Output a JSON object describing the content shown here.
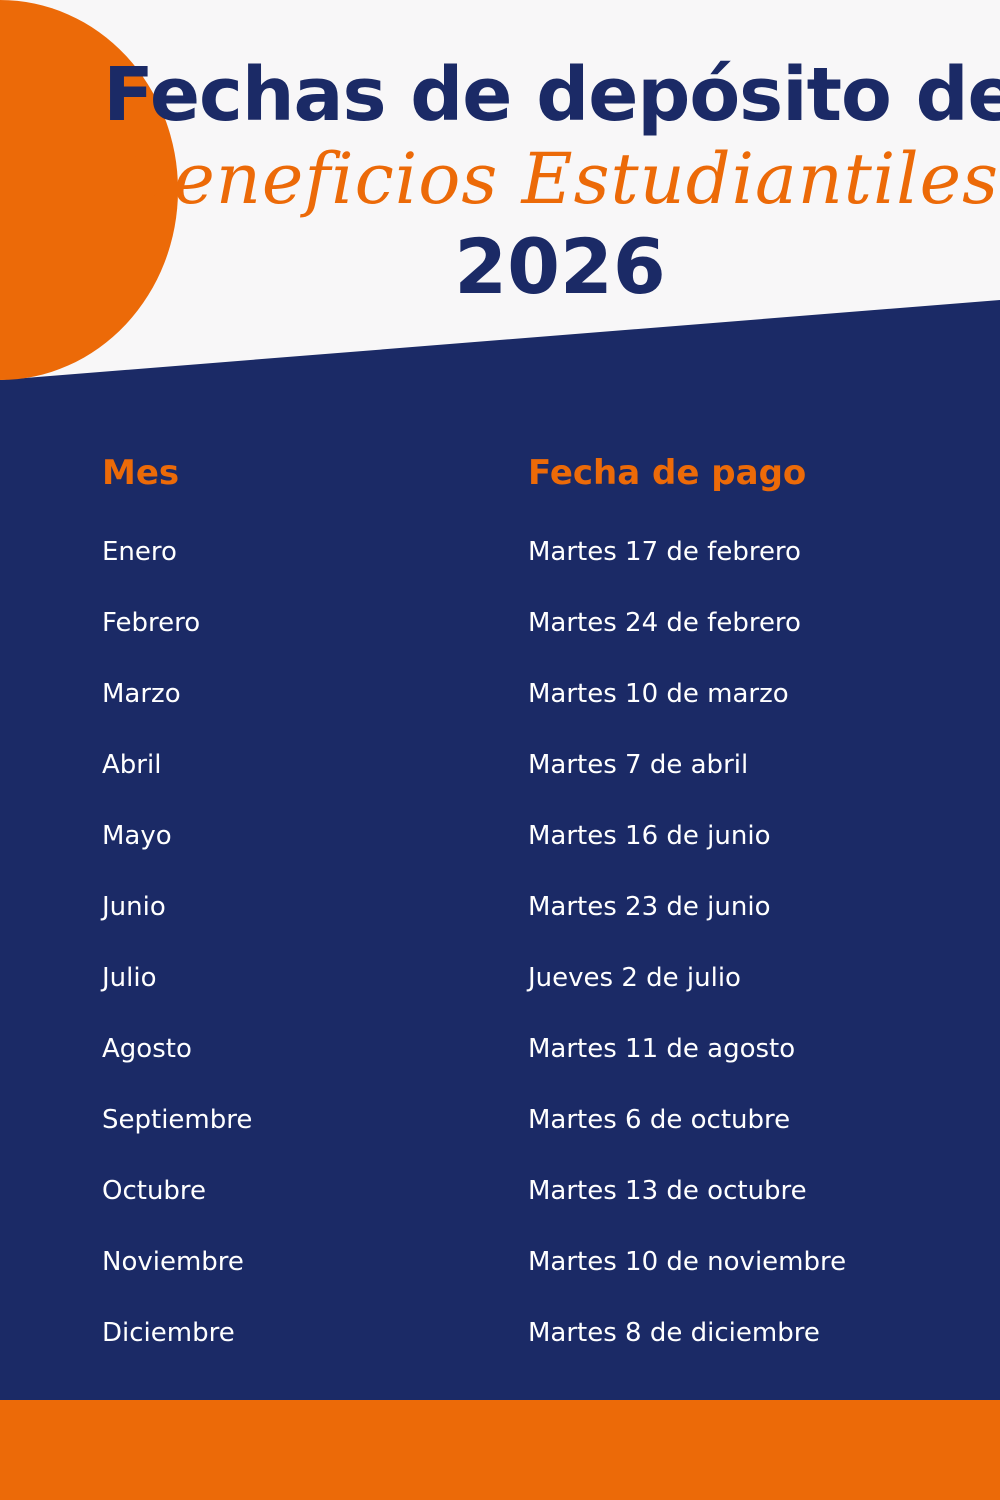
{
  "colors": {
    "navy": "#1b2a66",
    "orange": "#ec6a08",
    "background": "#f8f7f8"
  },
  "header": {
    "line1": "Fechas de depósito de",
    "line2": "Beneficios Estudiantiles",
    "line3": "2026"
  },
  "table": {
    "columns": [
      "Mes",
      "Fecha de pago"
    ],
    "rows": [
      {
        "month": "Enero",
        "date": "Martes 17 de febrero"
      },
      {
        "month": "Febrero",
        "date": "Martes 24 de febrero"
      },
      {
        "month": "Marzo",
        "date": "Martes 10 de marzo"
      },
      {
        "month": "Abril",
        "date": "Martes 7 de abril"
      },
      {
        "month": "Mayo",
        "date": "Martes 16 de junio"
      },
      {
        "month": "Junio",
        "date": "Martes 23 de junio"
      },
      {
        "month": "Julio",
        "date": "Jueves 2 de julio"
      },
      {
        "month": "Agosto",
        "date": "Martes 11 de agosto"
      },
      {
        "month": "Septiembre",
        "date": "Martes 6 de octubre"
      },
      {
        "month": "Octubre",
        "date": "Martes 13 de octubre"
      },
      {
        "month": "Noviembre",
        "date": "Martes 10 de noviembre"
      },
      {
        "month": "Diciembre",
        "date": "Martes 8 de diciembre"
      }
    ]
  }
}
